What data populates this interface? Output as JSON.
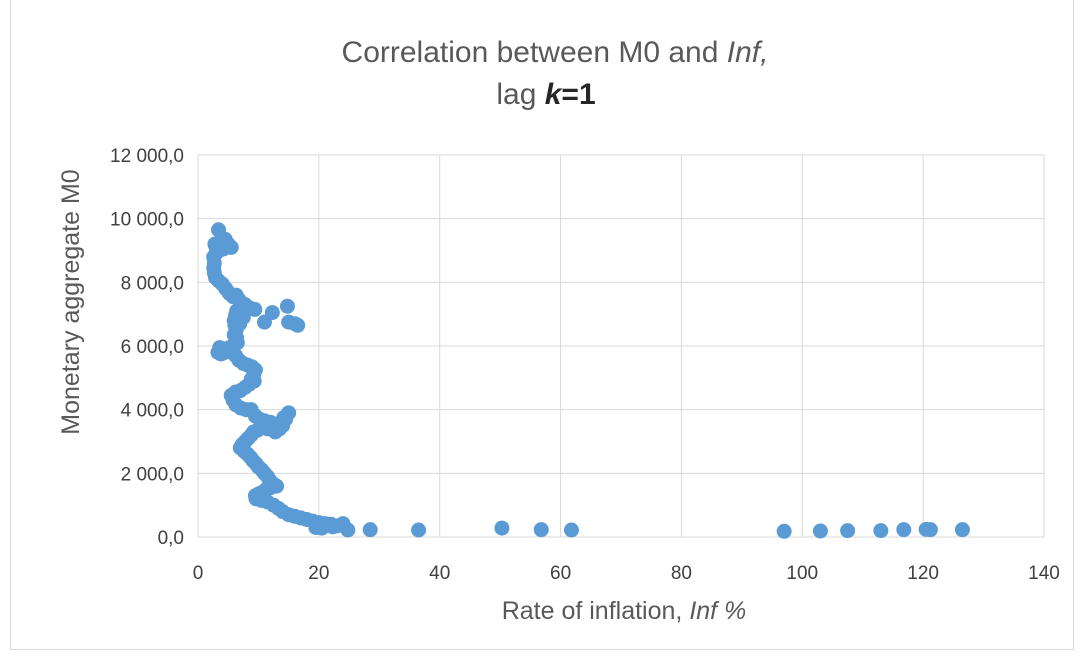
{
  "chart_data": {
    "type": "scatter",
    "title_line1_prefix": "Correlation between M0 and ",
    "title_line1_italic": "Inf,",
    "title_line2_prefix": "lag ",
    "title_line2_bold_italic": "k",
    "title_line2_bold": "=1",
    "xlabel_prefix": "Rate of inflation, ",
    "xlabel_italic": "Inf %",
    "ylabel": "Monetary aggregate M0",
    "xlim": [
      0,
      140
    ],
    "ylim": [
      0,
      12000
    ],
    "x_ticks": [
      "0",
      "20",
      "40",
      "60",
      "80",
      "100",
      "120",
      "140"
    ],
    "y_ticks": [
      "0,0",
      "2 000,0",
      "4 000,0",
      "6 000,0",
      "8 000,0",
      "10 000,0",
      "12 000,0"
    ],
    "grid": "vertical and horizontal",
    "marker_color": "#5b9bd5",
    "points": [
      [
        3.4,
        9650
      ],
      [
        2.8,
        9200
      ],
      [
        3.0,
        9100
      ],
      [
        3.5,
        9250
      ],
      [
        4.0,
        9300
      ],
      [
        4.5,
        9350
      ],
      [
        5.0,
        9200
      ],
      [
        5.5,
        9100
      ],
      [
        4.2,
        9050
      ],
      [
        3.2,
        8950
      ],
      [
        2.6,
        8800
      ],
      [
        2.7,
        8600
      ],
      [
        2.6,
        8450
      ],
      [
        2.7,
        8300
      ],
      [
        2.9,
        8150
      ],
      [
        3.4,
        8050
      ],
      [
        4.0,
        7950
      ],
      [
        4.6,
        7800
      ],
      [
        5.2,
        7650
      ],
      [
        5.8,
        7550
      ],
      [
        6.3,
        7600
      ],
      [
        6.8,
        7450
      ],
      [
        7.2,
        7350
      ],
      [
        7.8,
        7300
      ],
      [
        8.5,
        7200
      ],
      [
        9.4,
        7150
      ],
      [
        6.4,
        7100
      ],
      [
        6.2,
        6950
      ],
      [
        6.0,
        6800
      ],
      [
        6.1,
        6650
      ],
      [
        6.3,
        6500
      ],
      [
        6.0,
        6350
      ],
      [
        6.4,
        6250
      ],
      [
        6.9,
        6700
      ],
      [
        7.5,
        6900
      ],
      [
        11.0,
        6750
      ],
      [
        12.3,
        7050
      ],
      [
        14.8,
        7250
      ],
      [
        15.0,
        6750
      ],
      [
        16.5,
        6650
      ],
      [
        16.0,
        6700
      ],
      [
        6.5,
        6100
      ],
      [
        5.8,
        6000
      ],
      [
        5.2,
        5950
      ],
      [
        4.6,
        5900
      ],
      [
        4.0,
        5900
      ],
      [
        3.6,
        5950
      ],
      [
        3.3,
        5800
      ],
      [
        3.8,
        5750
      ],
      [
        4.5,
        5800
      ],
      [
        5.5,
        5850
      ],
      [
        6.2,
        5700
      ],
      [
        6.8,
        5550
      ],
      [
        7.5,
        5450
      ],
      [
        8.2,
        5400
      ],
      [
        8.9,
        5350
      ],
      [
        9.5,
        5250
      ],
      [
        9.2,
        5100
      ],
      [
        8.8,
        4950
      ],
      [
        9.3,
        4900
      ],
      [
        8.5,
        4800
      ],
      [
        7.8,
        4700
      ],
      [
        7.0,
        4600
      ],
      [
        6.2,
        4550
      ],
      [
        5.5,
        4450
      ],
      [
        5.8,
        4300
      ],
      [
        6.3,
        4150
      ],
      [
        7.1,
        4050
      ],
      [
        8.0,
        4000
      ],
      [
        8.8,
        4000
      ],
      [
        9.5,
        3800
      ],
      [
        10.2,
        3700
      ],
      [
        11.0,
        3650
      ],
      [
        12.0,
        3600
      ],
      [
        13.0,
        3550
      ],
      [
        14.0,
        3500
      ],
      [
        14.5,
        3700
      ],
      [
        15.0,
        3900
      ],
      [
        14.2,
        3750
      ],
      [
        13.5,
        3400
      ],
      [
        12.8,
        3300
      ],
      [
        11.5,
        3400
      ],
      [
        10.5,
        3450
      ],
      [
        9.8,
        3350
      ],
      [
        9.2,
        3300
      ],
      [
        8.8,
        3200
      ],
      [
        8.3,
        3100
      ],
      [
        7.8,
        3000
      ],
      [
        7.3,
        2900
      ],
      [
        7.0,
        2800
      ],
      [
        7.6,
        2700
      ],
      [
        8.2,
        2600
      ],
      [
        8.7,
        2500
      ],
      [
        9.1,
        2400
      ],
      [
        9.6,
        2300
      ],
      [
        10.0,
        2200
      ],
      [
        10.6,
        2100
      ],
      [
        11.0,
        2000
      ],
      [
        11.5,
        1900
      ],
      [
        11.8,
        1800
      ],
      [
        12.2,
        1700
      ],
      [
        12.6,
        1650
      ],
      [
        13.0,
        1600
      ],
      [
        12.0,
        1550
      ],
      [
        11.3,
        1500
      ],
      [
        10.6,
        1400
      ],
      [
        10.0,
        1350
      ],
      [
        9.5,
        1300
      ],
      [
        9.6,
        1200
      ],
      [
        10.5,
        1150
      ],
      [
        11.5,
        1100
      ],
      [
        12.5,
        1000
      ],
      [
        13.3,
        900
      ],
      [
        14.0,
        800
      ],
      [
        15.0,
        700
      ],
      [
        16.0,
        650
      ],
      [
        17.0,
        600
      ],
      [
        18.0,
        550
      ],
      [
        19.0,
        500
      ],
      [
        20.0,
        450
      ],
      [
        21.0,
        420
      ],
      [
        22.0,
        400
      ],
      [
        23.0,
        350
      ],
      [
        24.0,
        420
      ],
      [
        19.5,
        300
      ],
      [
        20.5,
        280
      ],
      [
        22.3,
        320
      ],
      [
        24.8,
        220
      ],
      [
        28.5,
        230
      ],
      [
        36.5,
        220
      ],
      [
        50.3,
        280
      ],
      [
        56.8,
        230
      ],
      [
        61.8,
        220
      ],
      [
        97.0,
        180
      ],
      [
        103.0,
        190
      ],
      [
        107.5,
        200
      ],
      [
        113.0,
        200
      ],
      [
        116.8,
        230
      ],
      [
        120.5,
        240
      ],
      [
        121.2,
        230
      ],
      [
        126.5,
        230
      ]
    ]
  }
}
